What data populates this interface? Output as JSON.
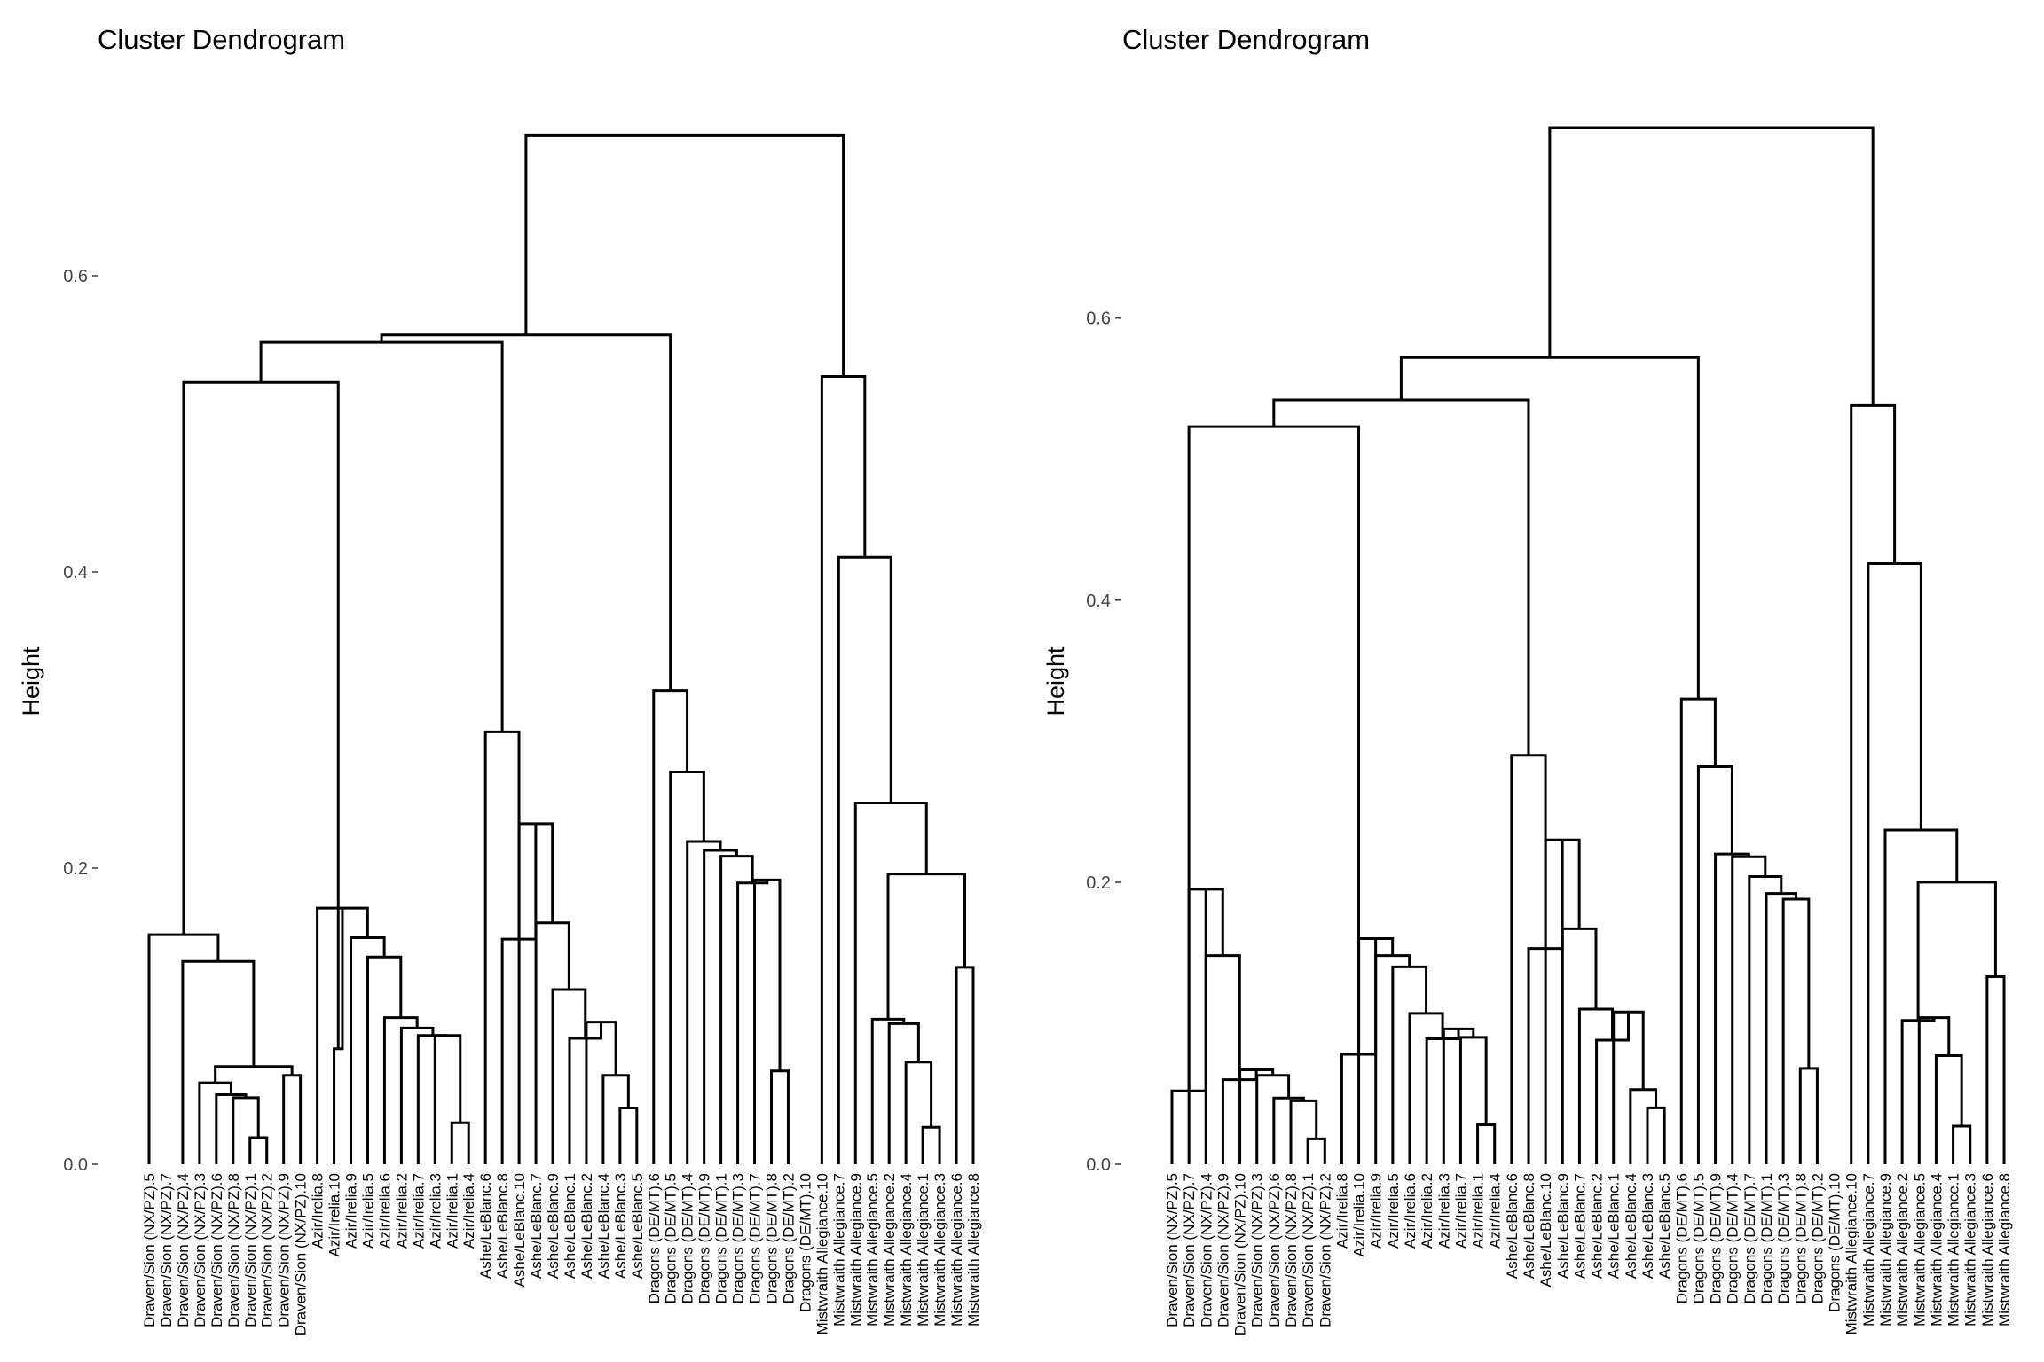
{
  "chart_data": [
    {
      "type": "dendrogram",
      "title": "Cluster Dendrogram",
      "ylabel": "Height",
      "ylim": [
        0,
        0.7
      ],
      "y_ticks": [
        "0.0",
        "0.2",
        "0.4",
        "0.6"
      ],
      "y_tick_values": [
        0,
        0.2,
        0.4,
        0.6
      ],
      "grid": false,
      "leaves": [
        "Draven/Sion (NX/PZ).5",
        "Draven/Sion (NX/PZ).7",
        "Draven/Sion (NX/PZ).4",
        "Draven/Sion (NX/PZ).3",
        "Draven/Sion (NX/PZ).6",
        "Draven/Sion (NX/PZ).8",
        "Draven/Sion (NX/PZ).1",
        "Draven/Sion (NX/PZ).2",
        "Draven/Sion (NX/PZ).9",
        "Draven/Sion (NX/PZ).10",
        "Azir/Irelia.8",
        "Azir/Irelia.10",
        "Azir/Irelia.9",
        "Azir/Irelia.5",
        "Azir/Irelia.6",
        "Azir/Irelia.2",
        "Azir/Irelia.7",
        "Azir/Irelia.3",
        "Azir/Irelia.1",
        "Azir/Irelia.4",
        "Ashe/LeBlanc.6",
        "Ashe/LeBlanc.8",
        "Ashe/LeBlanc.10",
        "Ashe/LeBlanc.7",
        "Ashe/LeBlanc.9",
        "Ashe/LeBlanc.1",
        "Ashe/LeBlanc.2",
        "Ashe/LeBlanc.4",
        "Ashe/LeBlanc.3",
        "Ashe/LeBlanc.5",
        "Dragons (DE/MT).6",
        "Dragons (DE/MT).5",
        "Dragons (DE/MT).4",
        "Dragons (DE/MT).9",
        "Dragons (DE/MT).1",
        "Dragons (DE/MT).3",
        "Dragons (DE/MT).7",
        "Dragons (DE/MT).8",
        "Dragons (DE/MT).2",
        "Dragons (DE/MT).10",
        "Mistwraith Allegiance.10",
        "Mistwraith Allegiance.7",
        "Mistwraith Allegiance.9",
        "Mistwraith Allegiance.5",
        "Mistwraith Allegiance.2",
        "Mistwraith Allegiance.4",
        "Mistwraith Allegiance.1",
        "Mistwraith Allegiance.3",
        "Mistwraith Allegiance.6",
        "Mistwraith Allegiance.8"
      ],
      "merges": [
        [
          [
            7,
            8
          ],
          0.018
        ],
        [
          [
            6,
            "m1"
          ],
          0.045
        ],
        [
          [
            5,
            "m2"
          ],
          0.047
        ],
        [
          [
            4,
            "m3"
          ],
          0.055
        ],
        [
          [
            9,
            10
          ],
          0.06
        ],
        [
          [
            "m4",
            "m5"
          ],
          0.066
        ],
        [
          [
            3,
            "m6"
          ],
          0.137
        ],
        [
          [
            1,
            "m7"
          ],
          0.155
        ],
        [
          [
            19,
            20
          ],
          0.028
        ],
        [
          [
            18,
            "m9"
          ],
          0.087
        ],
        [
          [
            17,
            "m10"
          ],
          0.087
        ],
        [
          [
            16,
            "m11"
          ],
          0.092
        ],
        [
          [
            15,
            "m12"
          ],
          0.099
        ],
        [
          [
            14,
            "m13"
          ],
          0.14
        ],
        [
          [
            13,
            "m14"
          ],
          0.153
        ],
        [
          [
            11,
            "m15"
          ],
          0.173
        ],
        [
          [
            12,
            "m16"
          ],
          0.078
        ],
        [
          [
            29,
            30
          ],
          0.038
        ],
        [
          [
            28,
            "m18"
          ],
          0.06
        ],
        [
          [
            27,
            "m19"
          ],
          0.096
        ],
        [
          [
            26,
            "m20"
          ],
          0.085
        ],
        [
          [
            25,
            "m21"
          ],
          0.118
        ],
        [
          [
            24,
            "m22"
          ],
          0.163
        ],
        [
          [
            23,
            "m23"
          ],
          0.23
        ],
        [
          [
            22,
            "m24"
          ],
          0.152
        ],
        [
          [
            21,
            "m25"
          ],
          0.292
        ],
        [
          [
            38,
            39
          ],
          0.063
        ],
        [
          [
            37,
            "m27"
          ],
          0.192
        ],
        [
          [
            36,
            "m28"
          ],
          0.19
        ],
        [
          [
            35,
            "m29"
          ],
          0.208
        ],
        [
          [
            34,
            "m30"
          ],
          0.212
        ],
        [
          [
            33,
            "m31"
          ],
          0.218
        ],
        [
          [
            32,
            "m32"
          ],
          0.265
        ],
        [
          [
            31,
            "m33"
          ],
          0.32
        ],
        [
          [
            47,
            48
          ],
          0.025
        ],
        [
          [
            46,
            "m35"
          ],
          0.069
        ],
        [
          [
            45,
            "m36"
          ],
          0.095
        ],
        [
          [
            44,
            "m37"
          ],
          0.098
        ],
        [
          [
            49,
            50
          ],
          0.133
        ],
        [
          [
            "m38",
            "m39"
          ],
          0.196
        ],
        [
          [
            43,
            "m40"
          ],
          0.244
        ],
        [
          [
            42,
            "m41"
          ],
          0.41
        ],
        [
          [
            41,
            "m42"
          ],
          0.532
        ],
        [
          [
            "m8",
            "m17"
          ],
          0.528
        ],
        [
          [
            "m44",
            "m26"
          ],
          0.555
        ],
        [
          [
            "m45",
            "m34"
          ],
          0.56
        ],
        [
          [
            "m46",
            "m43"
          ],
          0.695
        ]
      ]
    },
    {
      "type": "dendrogram",
      "title": "Cluster Dendrogram",
      "ylabel": "Height",
      "ylim": [
        0,
        0.735
      ],
      "y_ticks": [
        "0.0",
        "0.2",
        "0.4",
        "0.6"
      ],
      "y_tick_values": [
        0,
        0.2,
        0.4,
        0.6
      ],
      "grid": false,
      "leaves": [
        "Draven/Sion (NX/PZ).5",
        "Draven/Sion (NX/PZ).7",
        "Draven/Sion (NX/PZ).4",
        "Draven/Sion (NX/PZ).9",
        "Draven/Sion (NX/PZ).10",
        "Draven/Sion (NX/PZ).3",
        "Draven/Sion (NX/PZ).6",
        "Draven/Sion (NX/PZ).8",
        "Draven/Sion (NX/PZ).1",
        "Draven/Sion (NX/PZ).2",
        "Azir/Irelia.8",
        "Azir/Irelia.10",
        "Azir/Irelia.9",
        "Azir/Irelia.5",
        "Azir/Irelia.6",
        "Azir/Irelia.2",
        "Azir/Irelia.3",
        "Azir/Irelia.7",
        "Azir/Irelia.1",
        "Azir/Irelia.4",
        "Ashe/LeBlanc.6",
        "Ashe/LeBlanc.8",
        "Ashe/LeBlanc.10",
        "Ashe/LeBlanc.9",
        "Ashe/LeBlanc.7",
        "Ashe/LeBlanc.2",
        "Ashe/LeBlanc.1",
        "Ashe/LeBlanc.4",
        "Ashe/LeBlanc.3",
        "Ashe/LeBlanc.5",
        "Dragons (DE/MT).6",
        "Dragons (DE/MT).5",
        "Dragons (DE/MT).9",
        "Dragons (DE/MT).4",
        "Dragons (DE/MT).7",
        "Dragons (DE/MT).1",
        "Dragons (DE/MT).3",
        "Dragons (DE/MT).8",
        "Dragons (DE/MT).2",
        "Dragons (DE/MT).10",
        "Mistwraith Allegiance.10",
        "Mistwraith Allegiance.7",
        "Mistwraith Allegiance.9",
        "Mistwraith Allegiance.2",
        "Mistwraith Allegiance.5",
        "Mistwraith Allegiance.4",
        "Mistwraith Allegiance.1",
        "Mistwraith Allegiance.3",
        "Mistwraith Allegiance.6",
        "Mistwraith Allegiance.8"
      ],
      "merges": [
        [
          [
            9,
            10
          ],
          0.018
        ],
        [
          [
            8,
            "m1"
          ],
          0.045
        ],
        [
          [
            7,
            "m2"
          ],
          0.047
        ],
        [
          [
            6,
            "m3"
          ],
          0.063
        ],
        [
          [
            5,
            "m4"
          ],
          0.067
        ],
        [
          [
            4,
            "m5"
          ],
          0.06
        ],
        [
          [
            3,
            "m6"
          ],
          0.148
        ],
        [
          [
            2,
            "m7"
          ],
          0.195
        ],
        [
          [
            1,
            "m8"
          ],
          0.052
        ],
        [
          [
            19,
            20
          ],
          0.028
        ],
        [
          [
            18,
            "m10"
          ],
          0.09
        ],
        [
          [
            17,
            "m11"
          ],
          0.096
        ],
        [
          [
            16,
            "m12"
          ],
          0.089
        ],
        [
          [
            15,
            "m13"
          ],
          0.107
        ],
        [
          [
            14,
            "m14"
          ],
          0.14
        ],
        [
          [
            13,
            "m15"
          ],
          0.148
        ],
        [
          [
            12,
            "m16"
          ],
          0.16
        ],
        [
          [
            11,
            "m17"
          ],
          0.078
        ],
        [
          [
            29,
            30
          ],
          0.04
        ],
        [
          [
            28,
            "m19"
          ],
          0.053
        ],
        [
          [
            27,
            "m20"
          ],
          0.108
        ],
        [
          [
            26,
            "m21"
          ],
          0.088
        ],
        [
          [
            25,
            "m22"
          ],
          0.11
        ],
        [
          [
            24,
            "m23"
          ],
          0.167
        ],
        [
          [
            23,
            "m24"
          ],
          0.23
        ],
        [
          [
            22,
            "m25"
          ],
          0.153
        ],
        [
          [
            21,
            "m26"
          ],
          0.29
        ],
        [
          [
            38,
            39
          ],
          0.068
        ],
        [
          [
            37,
            "m28"
          ],
          0.188
        ],
        [
          [
            36,
            "m29"
          ],
          0.192
        ],
        [
          [
            35,
            "m30"
          ],
          0.204
        ],
        [
          [
            34,
            "m31"
          ],
          0.218
        ],
        [
          [
            33,
            "m32"
          ],
          0.22
        ],
        [
          [
            32,
            "m33"
          ],
          0.282
        ],
        [
          [
            31,
            "m34"
          ],
          0.33
        ],
        [
          [
            47,
            48
          ],
          0.027
        ],
        [
          [
            46,
            "m36"
          ],
          0.077
        ],
        [
          [
            45,
            "m37"
          ],
          0.104
        ],
        [
          [
            44,
            "m38"
          ],
          0.102
        ],
        [
          [
            49,
            50
          ],
          0.133
        ],
        [
          [
            "m39",
            "m40"
          ],
          0.2
        ],
        [
          [
            43,
            "m41"
          ],
          0.237
        ],
        [
          [
            42,
            "m42"
          ],
          0.426
        ],
        [
          [
            41,
            "m43"
          ],
          0.538
        ],
        [
          [
            "m9",
            "m18"
          ],
          0.523
        ],
        [
          [
            "m45",
            "m27"
          ],
          0.542
        ],
        [
          [
            "m46",
            "m35"
          ],
          0.572
        ],
        [
          [
            "m47",
            "m44"
          ],
          0.735
        ]
      ]
    }
  ]
}
